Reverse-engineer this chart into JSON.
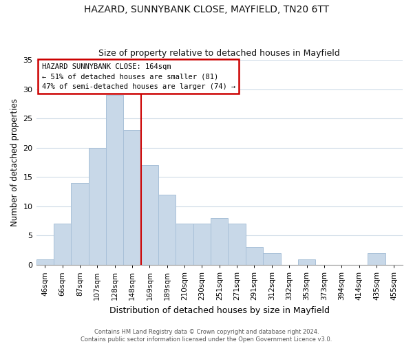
{
  "title": "HAZARD, SUNNYBANK CLOSE, MAYFIELD, TN20 6TT",
  "subtitle": "Size of property relative to detached houses in Mayfield",
  "xlabel": "Distribution of detached houses by size in Mayfield",
  "ylabel": "Number of detached properties",
  "footer_line1": "Contains HM Land Registry data © Crown copyright and database right 2024.",
  "footer_line2": "Contains public sector information licensed under the Open Government Licence v3.0.",
  "bin_labels": [
    "46sqm",
    "66sqm",
    "87sqm",
    "107sqm",
    "128sqm",
    "148sqm",
    "169sqm",
    "189sqm",
    "210sqm",
    "230sqm",
    "251sqm",
    "271sqm",
    "291sqm",
    "312sqm",
    "332sqm",
    "353sqm",
    "373sqm",
    "394sqm",
    "414sqm",
    "435sqm",
    "455sqm"
  ],
  "bin_values": [
    1,
    7,
    14,
    20,
    29,
    23,
    17,
    12,
    7,
    7,
    8,
    7,
    3,
    2,
    0,
    1,
    0,
    0,
    0,
    2,
    0
  ],
  "bar_color": "#c8d8e8",
  "bar_edgecolor": "#a8c0d8",
  "reference_line_color": "#cc0000",
  "annotation_line1": "HAZARD SUNNYBANK CLOSE: 164sqm",
  "annotation_line2": "← 51% of detached houses are smaller (81)",
  "annotation_line3": "47% of semi-detached houses are larger (74) →",
  "annotation_box_color": "#cc0000",
  "ylim": [
    0,
    35
  ],
  "yticks": [
    0,
    5,
    10,
    15,
    20,
    25,
    30,
    35
  ],
  "bg_color": "#ffffff",
  "grid_color": "#d0dce8",
  "title_fontsize": 10,
  "subtitle_fontsize": 9,
  "ylabel_fontsize": 8.5,
  "xlabel_fontsize": 9,
  "tick_fontsize": 7.5,
  "footer_fontsize": 6
}
